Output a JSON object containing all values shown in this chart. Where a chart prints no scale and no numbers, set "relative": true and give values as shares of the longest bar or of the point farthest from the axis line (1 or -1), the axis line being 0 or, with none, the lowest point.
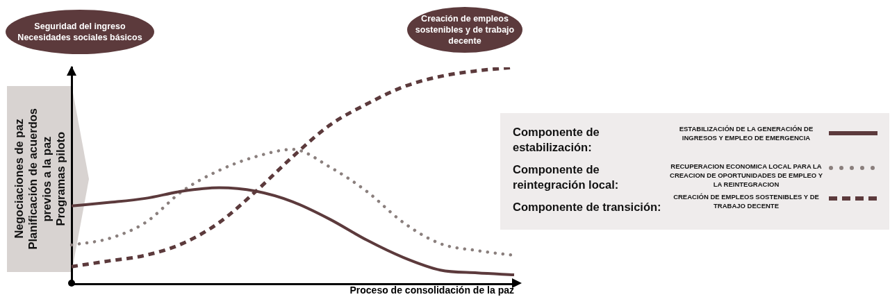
{
  "chart_data": {
    "type": "line",
    "relative": true,
    "xlabel": "Proceso de consolidación de la paz",
    "legend": "right",
    "marker": "none",
    "categories": [
      null,
      null,
      null,
      null,
      null,
      null,
      null,
      null,
      null,
      null,
      null,
      null,
      null
    ],
    "series": [
      {
        "name": "ESTABILIZACIÓN DE LA GENERACIÓN DE INGRESOS Y EMPLEO DE EMERGENCIA",
        "color": "#5c3a3c",
        "line_style": "solid",
        "values": [
          0.36,
          0.376,
          0.395,
          0.428,
          0.444,
          0.428,
          0.379,
          0.299,
          0.203,
          0.122,
          0.064,
          0.051,
          0.042
        ]
      },
      {
        "name": "RECUPERACION ECONOMICA LOCAL PARA LA CREACION DE OPORTUNIDADES DE EMPLEO Y LA REINTEGRACION",
        "color": "#8a7f7d",
        "line_style": "dotted",
        "values": [
          0.18,
          0.209,
          0.283,
          0.428,
          0.524,
          0.588,
          0.621,
          0.54,
          0.428,
          0.283,
          0.186,
          0.154,
          0.132
        ]
      },
      {
        "name": "CREACIÓN DE EMPLEOS SOSTENIBLES Y DE TRABAJO DECENTE",
        "color": "#5c3a3c",
        "line_style": "dashed",
        "values": [
          0.08,
          0.106,
          0.132,
          0.186,
          0.283,
          0.428,
          0.588,
          0.733,
          0.83,
          0.91,
          0.958,
          0.984,
          1
        ]
      }
    ],
    "annotations": [
      "Seguridad del ingreso\nNecesidades sociales básicos",
      "Creación de empleos\nsostenibles y de trabajo\ndecente",
      "Negociaciones de paz\nPlanificación de acuerdos\nprevios a la paz\nProgramas piloto",
      "Componente de\nestabilización:",
      "Componente de\nreintegración local:",
      "Componente de transición:"
    ]
  }
}
